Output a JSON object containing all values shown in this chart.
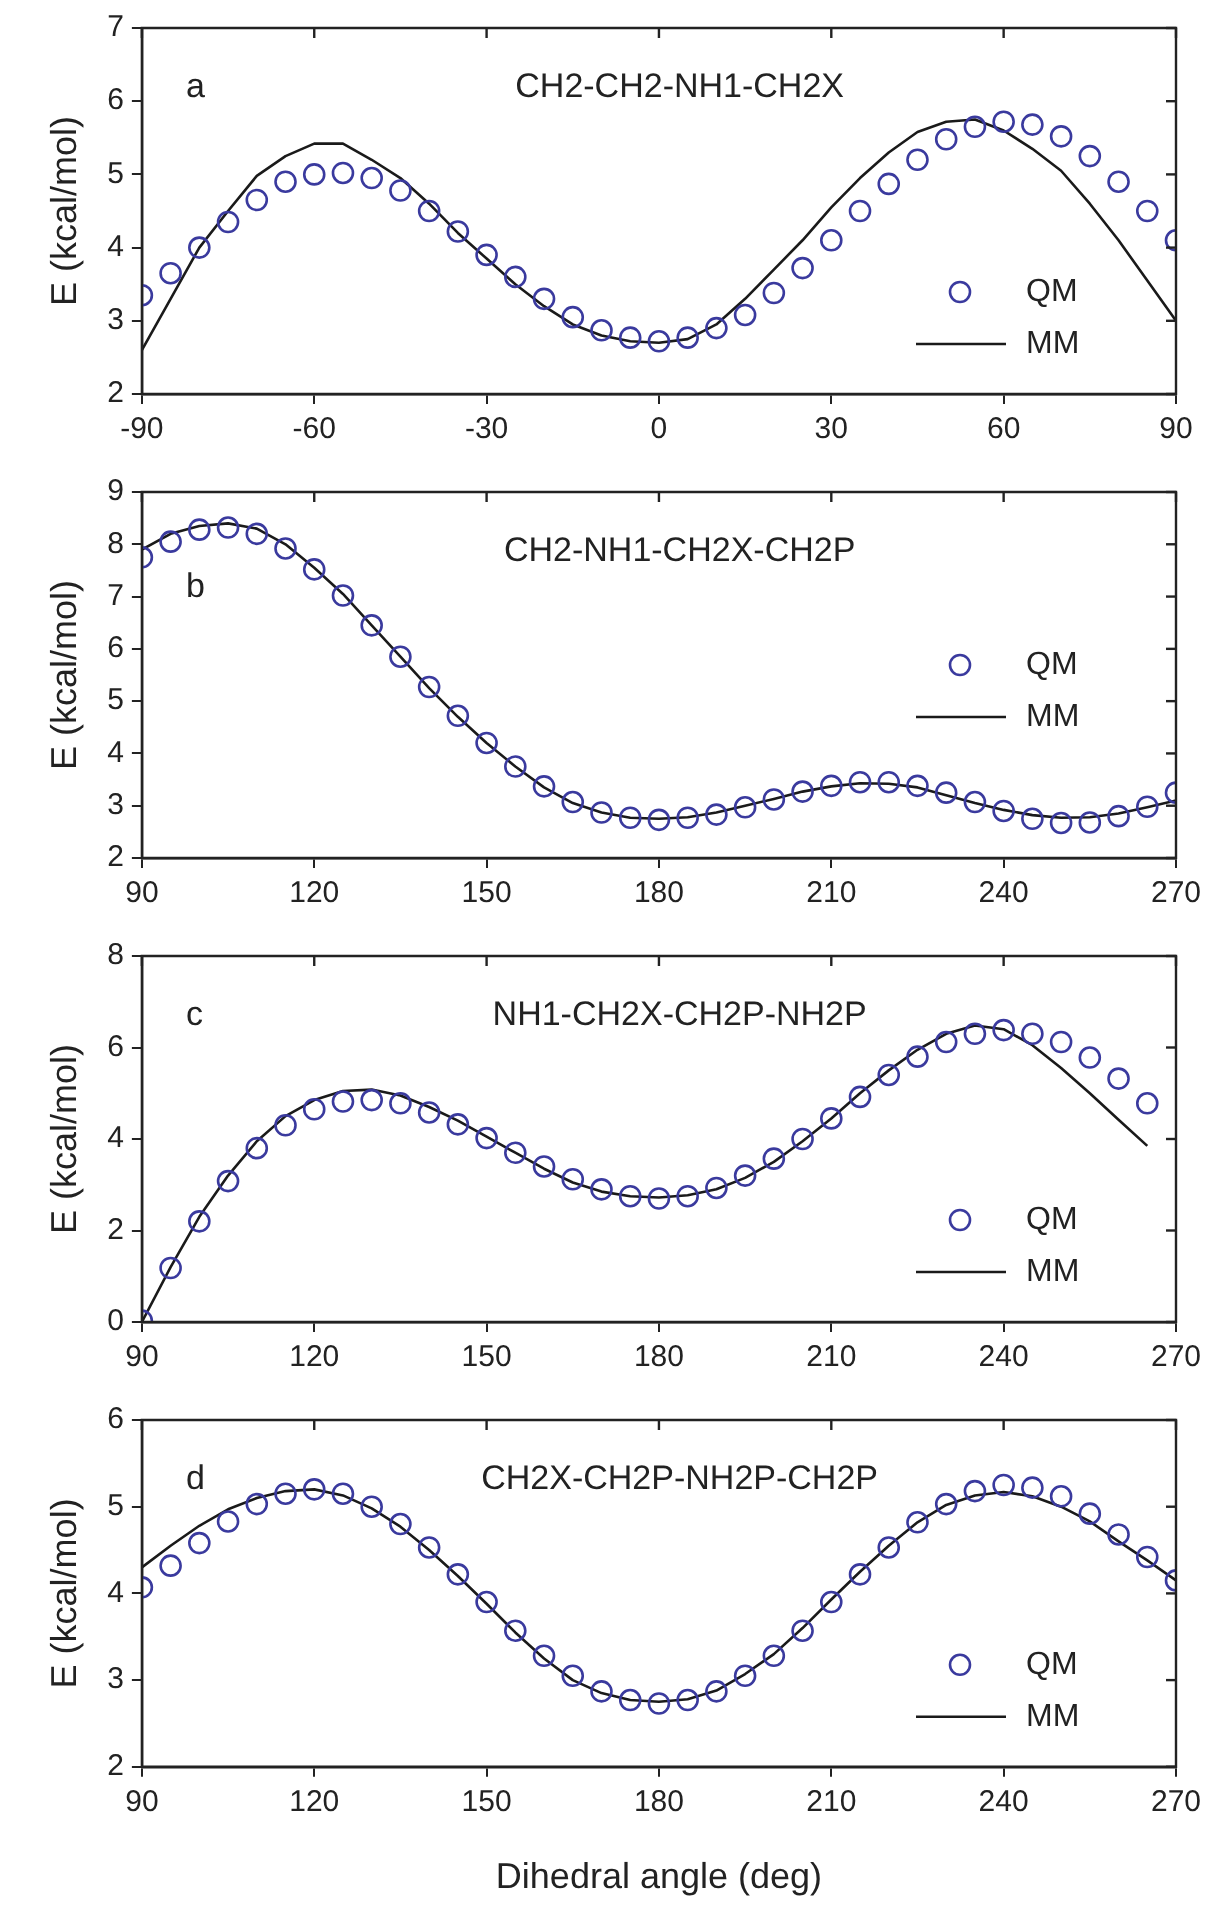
{
  "chart_data": [
    {
      "type": "scatter",
      "ylabel": "E (kcal/mol)",
      "annotations": [
        "a",
        "CH2-CH2-NH1-CH2X"
      ],
      "legend": "bottom right",
      "grid": false,
      "xlim": [
        -90,
        90
      ],
      "xticks": [
        -90,
        -60,
        -30,
        0,
        30,
        60,
        90
      ],
      "ylim": [
        2,
        7
      ],
      "yticks": [
        2,
        3,
        4,
        5,
        6,
        7
      ],
      "x": [
        -90,
        -85,
        -80,
        -75,
        -70,
        -65,
        -60,
        -55,
        -50,
        -45,
        -40,
        -35,
        -30,
        -25,
        -20,
        -15,
        -10,
        -5,
        0,
        5,
        10,
        15,
        20,
        25,
        30,
        35,
        40,
        45,
        50,
        55,
        60,
        65,
        70,
        75,
        80,
        85,
        90
      ],
      "series": [
        {
          "name": "QM",
          "marker": "circle",
          "color": "#3a3a9e",
          "values": [
            3.35,
            3.65,
            4.0,
            4.35,
            4.65,
            4.9,
            5.0,
            5.02,
            4.95,
            4.78,
            4.5,
            4.22,
            3.9,
            3.6,
            3.3,
            3.05,
            2.87,
            2.77,
            2.72,
            2.77,
            2.9,
            3.08,
            3.38,
            3.72,
            4.1,
            4.5,
            4.87,
            5.2,
            5.48,
            5.65,
            5.72,
            5.68,
            5.52,
            5.25,
            4.9,
            4.5,
            4.1
          ]
        },
        {
          "name": "MM",
          "type": "line",
          "marker": "none",
          "color": "#1a1a1a",
          "line_style": "solid",
          "values": [
            2.6,
            3.3,
            4.0,
            4.5,
            4.98,
            5.25,
            5.42,
            5.42,
            5.2,
            4.95,
            4.6,
            4.2,
            3.85,
            3.5,
            3.2,
            2.95,
            2.8,
            2.72,
            2.7,
            2.75,
            2.95,
            3.3,
            3.7,
            4.1,
            4.55,
            4.95,
            5.3,
            5.58,
            5.72,
            5.75,
            5.6,
            5.35,
            5.05,
            4.6,
            4.1,
            3.55,
            3.0
          ]
        }
      ]
    },
    {
      "type": "scatter",
      "ylabel": "E (kcal/mol)",
      "annotations": [
        "b",
        "CH2-NH1-CH2X-CH2P"
      ],
      "legend": "right",
      "grid": false,
      "xlim": [
        90,
        270
      ],
      "xticks": [
        90,
        120,
        150,
        180,
        210,
        240,
        270
      ],
      "ylim": [
        2,
        9
      ],
      "yticks": [
        2,
        3,
        4,
        5,
        6,
        7,
        8,
        9
      ],
      "x": [
        90,
        95,
        100,
        105,
        110,
        115,
        120,
        125,
        130,
        135,
        140,
        145,
        150,
        155,
        160,
        165,
        170,
        175,
        180,
        185,
        190,
        195,
        200,
        205,
        210,
        215,
        220,
        225,
        230,
        235,
        240,
        245,
        250,
        255,
        260,
        265,
        270
      ],
      "series": [
        {
          "name": "QM",
          "marker": "circle",
          "color": "#3a3a9e",
          "values": [
            7.75,
            8.05,
            8.28,
            8.32,
            8.2,
            7.92,
            7.52,
            7.02,
            6.45,
            5.85,
            5.27,
            4.72,
            4.2,
            3.75,
            3.37,
            3.07,
            2.87,
            2.77,
            2.73,
            2.77,
            2.83,
            2.97,
            3.12,
            3.27,
            3.38,
            3.45,
            3.45,
            3.38,
            3.25,
            3.07,
            2.9,
            2.75,
            2.67,
            2.68,
            2.8,
            2.98,
            3.25
          ]
        },
        {
          "name": "MM",
          "type": "line",
          "marker": "none",
          "color": "#1a1a1a",
          "line_style": "solid",
          "values": [
            7.9,
            8.2,
            8.35,
            8.4,
            8.3,
            8.0,
            7.55,
            7.05,
            6.45,
            5.85,
            5.25,
            4.7,
            4.2,
            3.75,
            3.35,
            3.05,
            2.87,
            2.77,
            2.75,
            2.78,
            2.87,
            3.0,
            3.13,
            3.27,
            3.37,
            3.43,
            3.42,
            3.35,
            3.2,
            3.05,
            2.92,
            2.82,
            2.77,
            2.78,
            2.85,
            2.97,
            3.1
          ]
        }
      ]
    },
    {
      "type": "scatter",
      "ylabel": "E (kcal/mol)",
      "annotations": [
        "c",
        "NH1-CH2X-CH2P-NH2P"
      ],
      "legend": "bottom right",
      "grid": false,
      "xlim": [
        90,
        270
      ],
      "xticks": [
        90,
        120,
        150,
        180,
        210,
        240,
        270
      ],
      "ylim": [
        0,
        8
      ],
      "yticks": [
        0,
        2,
        4,
        6,
        8
      ],
      "x": [
        90,
        95,
        100,
        105,
        110,
        115,
        120,
        125,
        130,
        135,
        140,
        145,
        150,
        155,
        160,
        165,
        170,
        175,
        180,
        185,
        190,
        195,
        200,
        205,
        210,
        215,
        220,
        225,
        230,
        235,
        240,
        245,
        250,
        255,
        260,
        265
      ],
      "series": [
        {
          "name": "QM",
          "marker": "circle",
          "color": "#3a3a9e",
          "values": [
            0.03,
            1.18,
            2.2,
            3.08,
            3.8,
            4.3,
            4.65,
            4.82,
            4.85,
            4.78,
            4.58,
            4.32,
            4.02,
            3.7,
            3.4,
            3.12,
            2.9,
            2.75,
            2.7,
            2.75,
            2.93,
            3.2,
            3.57,
            4.0,
            4.45,
            4.92,
            5.4,
            5.8,
            6.12,
            6.3,
            6.38,
            6.3,
            6.12,
            5.78,
            5.32,
            4.78
          ]
        },
        {
          "name": "MM",
          "type": "line",
          "marker": "none",
          "color": "#1a1a1a",
          "line_style": "solid",
          "values": [
            0.0,
            1.2,
            2.3,
            3.2,
            3.95,
            4.5,
            4.85,
            5.05,
            5.08,
            4.95,
            4.7,
            4.4,
            4.05,
            3.7,
            3.35,
            3.05,
            2.85,
            2.75,
            2.72,
            2.77,
            2.9,
            3.15,
            3.5,
            3.95,
            4.45,
            5.0,
            5.5,
            5.95,
            6.3,
            6.48,
            6.4,
            6.05,
            5.55,
            5.0,
            4.42,
            3.85
          ]
        }
      ]
    },
    {
      "type": "scatter",
      "xlabel": "Dihedral angle (deg)",
      "ylabel": "E (kcal/mol)",
      "annotations": [
        "d",
        "CH2X-CH2P-NH2P-CH2P"
      ],
      "legend": "bottom right",
      "grid": false,
      "xlim": [
        90,
        270
      ],
      "xticks": [
        90,
        120,
        150,
        180,
        210,
        240,
        270
      ],
      "ylim": [
        2,
        6
      ],
      "yticks": [
        2,
        3,
        4,
        5,
        6
      ],
      "x": [
        90,
        95,
        100,
        105,
        110,
        115,
        120,
        125,
        130,
        135,
        140,
        145,
        150,
        155,
        160,
        165,
        170,
        175,
        180,
        185,
        190,
        195,
        200,
        205,
        210,
        215,
        220,
        225,
        230,
        235,
        240,
        245,
        250,
        255,
        260,
        265,
        270
      ],
      "series": [
        {
          "name": "QM",
          "marker": "circle",
          "color": "#3a3a9e",
          "values": [
            4.07,
            4.32,
            4.58,
            4.83,
            5.03,
            5.15,
            5.2,
            5.15,
            5.0,
            4.8,
            4.53,
            4.22,
            3.9,
            3.57,
            3.28,
            3.05,
            2.87,
            2.77,
            2.73,
            2.77,
            2.87,
            3.05,
            3.28,
            3.57,
            3.9,
            4.22,
            4.53,
            4.82,
            5.03,
            5.18,
            5.25,
            5.22,
            5.12,
            4.92,
            4.68,
            4.42,
            4.15
          ]
        },
        {
          "name": "MM",
          "type": "line",
          "marker": "none",
          "color": "#1a1a1a",
          "line_style": "solid",
          "values": [
            4.3,
            4.55,
            4.78,
            4.97,
            5.1,
            5.18,
            5.2,
            5.13,
            4.98,
            4.77,
            4.5,
            4.2,
            3.88,
            3.55,
            3.25,
            3.0,
            2.85,
            2.77,
            2.75,
            2.78,
            2.88,
            3.07,
            3.3,
            3.6,
            3.93,
            4.25,
            4.55,
            4.82,
            5.02,
            5.13,
            5.17,
            5.12,
            5.0,
            4.83,
            4.6,
            4.38,
            4.15
          ]
        }
      ]
    }
  ]
}
